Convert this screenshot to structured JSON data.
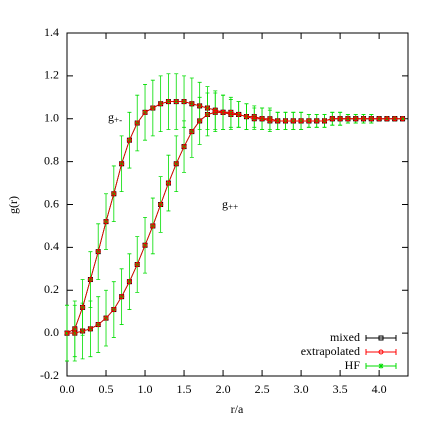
{
  "chart_data": {
    "type": "line",
    "x_label": "r/a",
    "y_label": "g(r)",
    "xlim": [
      0,
      4.37
    ],
    "ylim": [
      -0.2,
      1.4
    ],
    "xticks": [
      {
        "value": 0,
        "label": "0.0"
      },
      0.5,
      {
        "value": 1,
        "label": "1.0"
      },
      1.5,
      {
        "value": 2,
        "label": "2.0"
      },
      2.5,
      {
        "value": 3,
        "label": "3.0"
      },
      3.5,
      {
        "value": 4,
        "label": "4.0"
      }
    ],
    "yticks": [
      -0.2,
      {
        "value": 0,
        "label": "0.0"
      },
      0.2,
      0.4,
      0.6,
      0.8,
      {
        "value": 1,
        "label": "1.0"
      },
      1.2,
      1.4
    ],
    "legend": "lower right",
    "annotations": [
      {
        "text": "g",
        "sub": "+-"
      },
      {
        "text": "g",
        "sub": "++"
      }
    ],
    "x": [
      0,
      0.1,
      0.2,
      0.3,
      0.4,
      0.5,
      0.6,
      0.7,
      0.8,
      0.9,
      1.0,
      1.1,
      1.2,
      1.3,
      1.4,
      1.5,
      1.6,
      1.7,
      1.8,
      1.9,
      2.0,
      2.1,
      2.2,
      2.3,
      2.4,
      2.5,
      2.6,
      2.7,
      2.8,
      2.9,
      3.0,
      3.1,
      3.2,
      3.3,
      3.4,
      3.5,
      3.6,
      3.7,
      3.8,
      3.9,
      4.0,
      4.1,
      4.2,
      4.3
    ],
    "series": [
      {
        "name": "mixed",
        "color": "#000000",
        "marker": "square",
        "curves": [
          {
            "values": [
              0.0,
              0.02,
              0.12,
              0.25,
              0.38,
              0.52,
              0.65,
              0.79,
              0.9,
              0.98,
              1.03,
              1.05,
              1.07,
              1.08,
              1.08,
              1.08,
              1.07,
              1.06,
              1.05,
              1.04,
              1.03,
              1.02,
              1.02,
              1.01,
              1.01,
              1.0,
              1.0,
              0.99,
              0.99,
              0.99,
              0.99,
              0.99,
              0.99,
              0.99,
              1.0,
              1.0,
              1.0,
              1.0,
              1.0,
              1.0,
              1.0,
              1.0,
              1.0,
              1.0
            ]
          },
          {
            "values": [
              0.0,
              0.0,
              0.01,
              0.02,
              0.04,
              0.07,
              0.11,
              0.17,
              0.24,
              0.32,
              0.41,
              0.5,
              0.6,
              0.7,
              0.79,
              0.87,
              0.94,
              0.99,
              1.02,
              1.03,
              1.03,
              1.03,
              1.02,
              1.01,
              1.0,
              1.0,
              0.99,
              0.99,
              0.99,
              0.99,
              0.99,
              0.99,
              0.99,
              0.99,
              1.0,
              1.0,
              1.0,
              1.0,
              1.0,
              1.0,
              1.0,
              1.0,
              1.0,
              1.0
            ]
          }
        ]
      },
      {
        "name": "extrapolated",
        "color": "#ff0000",
        "marker": "circle",
        "curves": [
          {
            "values": [
              0.0,
              0.02,
              0.12,
              0.25,
              0.38,
              0.52,
              0.65,
              0.79,
              0.9,
              0.98,
              1.03,
              1.05,
              1.07,
              1.08,
              1.08,
              1.08,
              1.07,
              1.06,
              1.05,
              1.04,
              1.03,
              1.02,
              1.02,
              1.01,
              1.01,
              1.0,
              1.0,
              0.99,
              0.99,
              0.99,
              0.99,
              0.99,
              0.99,
              0.99,
              1.0,
              1.0,
              1.0,
              1.0,
              1.0,
              1.0,
              1.0,
              1.0,
              1.0,
              1.0
            ]
          },
          {
            "values": [
              0.0,
              0.0,
              0.01,
              0.02,
              0.04,
              0.07,
              0.11,
              0.17,
              0.24,
              0.32,
              0.41,
              0.5,
              0.6,
              0.7,
              0.79,
              0.87,
              0.94,
              0.99,
              1.02,
              1.03,
              1.03,
              1.03,
              1.02,
              1.01,
              1.0,
              1.0,
              0.99,
              0.99,
              0.99,
              0.99,
              0.99,
              0.99,
              0.99,
              0.99,
              1.0,
              1.0,
              1.0,
              1.0,
              1.0,
              1.0,
              1.0,
              1.0,
              1.0,
              1.0
            ]
          }
        ]
      },
      {
        "name": "HF",
        "color": "#00dd00",
        "marker": "star",
        "curves": [
          {
            "values": [
              0.0,
              0.02,
              0.12,
              0.25,
              0.38,
              0.52,
              0.65,
              0.79,
              0.9,
              0.98,
              1.03,
              1.05,
              1.07,
              1.08,
              1.08,
              1.08,
              1.07,
              1.06,
              1.05,
              1.04,
              1.03,
              1.02,
              1.02,
              1.01,
              1.01,
              1.0,
              1.0,
              0.99,
              0.99,
              0.99,
              0.99,
              0.99,
              0.99,
              0.99,
              1.0,
              1.0,
              1.0,
              1.0,
              1.0,
              1.0,
              1.0,
              1.0,
              1.0,
              1.0
            ],
            "errors": [
              0.13,
              0.13,
              0.13,
              0.13,
              0.13,
              0.13,
              0.13,
              0.13,
              0.13,
              0.13,
              0.13,
              0.13,
              0.13,
              0.13,
              0.13,
              0.12,
              0.12,
              0.11,
              0.1,
              0.09,
              0.08,
              0.07,
              0.06,
              0.06,
              0.05,
              0.05,
              0.05,
              0.04,
              0.04,
              0.04,
              0.04,
              0.03,
              0.03,
              0.03,
              0.03,
              0.03,
              0.02,
              0.02,
              0.02,
              0.02,
              0.01,
              0.01,
              0.01,
              0.0
            ]
          },
          {
            "values": [
              0.0,
              0.0,
              0.01,
              0.02,
              0.04,
              0.07,
              0.11,
              0.17,
              0.24,
              0.32,
              0.41,
              0.5,
              0.6,
              0.7,
              0.79,
              0.87,
              0.94,
              0.99,
              1.02,
              1.03,
              1.03,
              1.03,
              1.02,
              1.01,
              1.0,
              1.0,
              0.99,
              0.99,
              0.99,
              0.99,
              0.99,
              0.99,
              0.99,
              0.99,
              1.0,
              1.0,
              1.0,
              1.0,
              1.0,
              1.0,
              1.0,
              1.0,
              1.0,
              1.0
            ],
            "errors": [
              0.13,
              0.13,
              0.13,
              0.13,
              0.13,
              0.13,
              0.13,
              0.13,
              0.13,
              0.13,
              0.13,
              0.13,
              0.13,
              0.13,
              0.13,
              0.12,
              0.12,
              0.11,
              0.1,
              0.09,
              0.08,
              0.07,
              0.06,
              0.06,
              0.05,
              0.05,
              0.05,
              0.04,
              0.04,
              0.04,
              0.04,
              0.03,
              0.03,
              0.03,
              0.03,
              0.03,
              0.02,
              0.02,
              0.02,
              0.02,
              0.01,
              0.01,
              0.01,
              0.0
            ]
          }
        ]
      }
    ]
  }
}
